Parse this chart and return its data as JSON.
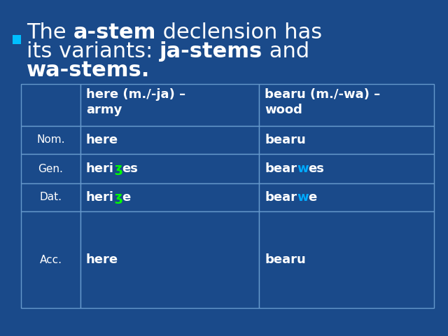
{
  "background_color": "#1a4a8a",
  "bullet_color": "#00bfff",
  "text_color": "#ffffff",
  "table": {
    "border_color": "#6699cc",
    "cols": [
      "",
      "here (m./-ja) –\narmy",
      "bearu (m./-wa) –\nwood"
    ],
    "rows": [
      {
        "label": "Nom.",
        "col1": [
          [
            "here",
            "#ffffff"
          ]
        ],
        "col2": [
          [
            "bearu",
            "#ffffff"
          ]
        ]
      },
      {
        "label": "Gen.",
        "col1": [
          [
            "heri",
            "#ffffff"
          ],
          [
            "ʒ",
            "#00ff00"
          ],
          [
            "es",
            "#ffffff"
          ]
        ],
        "col2": [
          [
            "bear",
            "#ffffff"
          ],
          [
            "w",
            "#00aaff"
          ],
          [
            "es",
            "#ffffff"
          ]
        ]
      },
      {
        "label": "Dat.",
        "col1": [
          [
            "heri",
            "#ffffff"
          ],
          [
            "ʒ",
            "#00ff00"
          ],
          [
            "e",
            "#ffffff"
          ]
        ],
        "col2": [
          [
            "bear",
            "#ffffff"
          ],
          [
            "w",
            "#00aaff"
          ],
          [
            "e",
            "#ffffff"
          ]
        ]
      },
      {
        "label": "Acc.",
        "col1": [
          [
            "here",
            "#ffffff"
          ]
        ],
        "col2": [
          [
            "bearu",
            "#ffffff"
          ]
        ]
      }
    ]
  }
}
